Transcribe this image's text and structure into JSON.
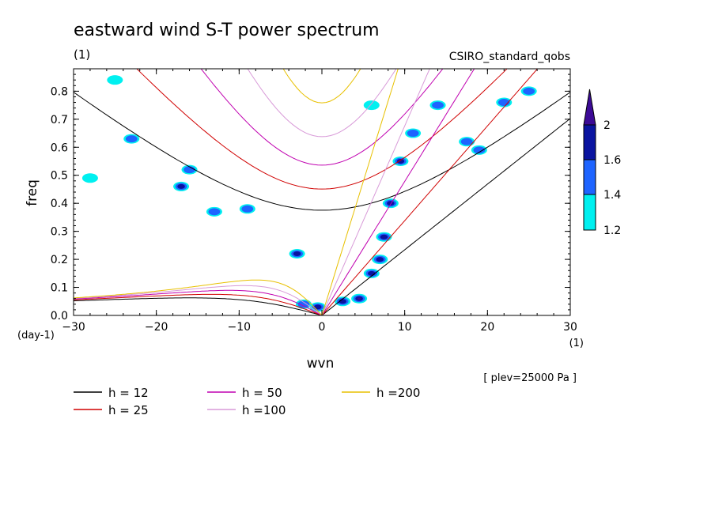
{
  "chart_data": {
    "type": "heatmap",
    "title": "eastward wind S-T power spectrum",
    "subtitle_left": "(1)",
    "subtitle_right": "CSIRO_standard_qobs",
    "xlabel": "wvn",
    "xunit": "(1)",
    "ylabel": "freq",
    "yunit": "(day-1)",
    "note": "[ plev=25000 Pa ]",
    "xlim": [
      -30,
      30
    ],
    "ylim": [
      0,
      0.88
    ],
    "xticks": [
      -30,
      -20,
      -10,
      0,
      10,
      20,
      30
    ],
    "yticks": [
      0.0,
      0.1,
      0.2,
      0.3,
      0.4,
      0.5,
      0.6,
      0.7,
      0.8
    ],
    "colorbar": {
      "levels": [
        "1.2",
        "1.4",
        "1.6",
        "2"
      ],
      "colors": [
        "#00f0f0",
        "#1e64ff",
        "#0a14a0",
        "#3c0a96"
      ]
    },
    "dispersion_curves": [
      {
        "label": "h = 12",
        "h": 12,
        "color": "#000000"
      },
      {
        "label": "h = 25",
        "h": 25,
        "color": "#d00000"
      },
      {
        "label": "h = 50",
        "h": 50,
        "color": "#c000b0"
      },
      {
        "label": "h =100",
        "h": 100,
        "color": "#d89ad8"
      },
      {
        "label": "h =200",
        "h": 200,
        "color": "#e8c000"
      }
    ],
    "power_blobs": [
      {
        "x": 4.5,
        "y": 0.06,
        "level": 3
      },
      {
        "x": 2.5,
        "y": 0.05,
        "level": 2
      },
      {
        "x": 6,
        "y": 0.15,
        "level": 2
      },
      {
        "x": 7,
        "y": 0.2,
        "level": 2
      },
      {
        "x": 7.5,
        "y": 0.28,
        "level": 2
      },
      {
        "x": 8.3,
        "y": 0.4,
        "level": 2
      },
      {
        "x": 9.5,
        "y": 0.55,
        "level": 2
      },
      {
        "x": 11,
        "y": 0.65,
        "level": 1
      },
      {
        "x": -0.5,
        "y": 0.03,
        "level": 2
      },
      {
        "x": -3,
        "y": 0.22,
        "level": 2
      },
      {
        "x": -2.2,
        "y": 0.04,
        "level": 1
      },
      {
        "x": -16,
        "y": 0.52,
        "level": 1
      },
      {
        "x": -17,
        "y": 0.46,
        "level": 2
      },
      {
        "x": -23,
        "y": 0.63,
        "level": 1
      },
      {
        "x": -13,
        "y": 0.37,
        "level": 1
      },
      {
        "x": 14,
        "y": 0.75,
        "level": 1
      },
      {
        "x": 17.5,
        "y": 0.62,
        "level": 1
      },
      {
        "x": 22,
        "y": 0.76,
        "level": 1
      },
      {
        "x": 25,
        "y": 0.8,
        "level": 1
      },
      {
        "x": -9,
        "y": 0.38,
        "level": 1
      },
      {
        "x": 19,
        "y": 0.59,
        "level": 1
      },
      {
        "x": -25,
        "y": 0.84,
        "level": 0
      },
      {
        "x": -28,
        "y": 0.49,
        "level": 0
      },
      {
        "x": 6,
        "y": 0.75,
        "level": 0
      }
    ]
  }
}
